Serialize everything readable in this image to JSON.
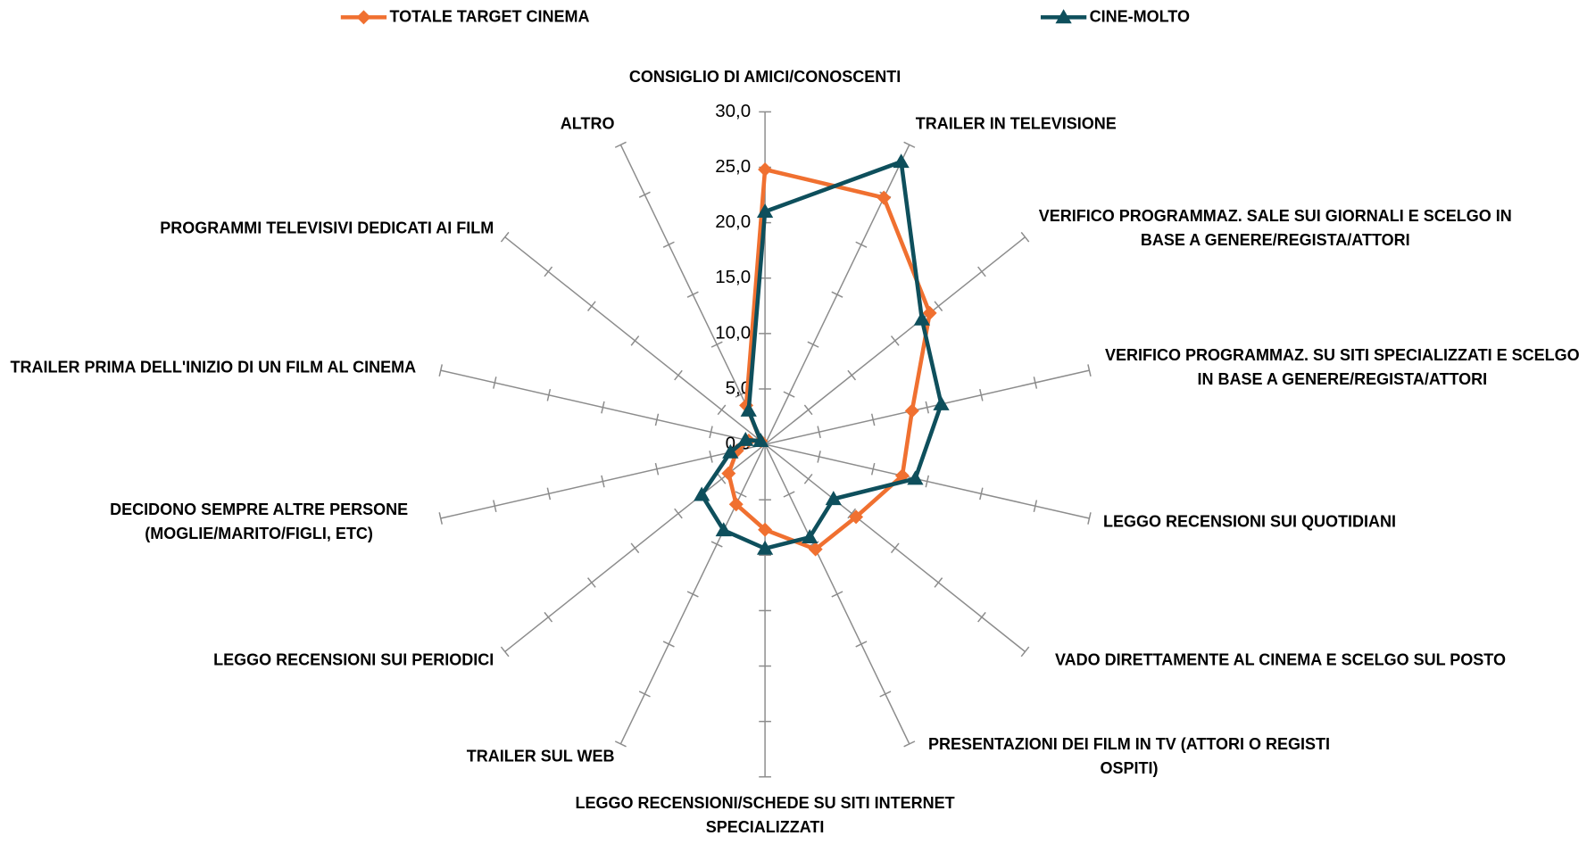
{
  "chart_data": {
    "type": "radar",
    "categories": [
      "CONSIGLIO DI AMICI/CONOSCENTI",
      "TRAILER IN TELEVISIONE",
      "VERIFICO PROGRAMMAZ. SALE SUI GIORNALI E SCELGO IN BASE A GENERE/REGISTA/ATTORI",
      "VERIFICO PROGRAMMAZ. SU SITI SPECIALIZZATI E SCELGO IN BASE A GENERE/REGISTA/ATTORI",
      "LEGGO RECENSIONI SUI QUOTIDIANI",
      "VADO DIRETTAMENTE AL CINEMA E SCELGO SUL POSTO",
      "PRESENTAZIONI DEI FILM IN TV (ATTORI O REGISTI OSPITI)",
      "LEGGO RECENSIONI/SCHEDE SU SITI INTERNET SPECIALIZZATI",
      "TRAILER SUL WEB",
      "LEGGO RECENSIONI SUI PERIODICI",
      "DECIDONO SEMPRE ALTRE PERSONE (MOGLIE/MARITO/FIGLI, ETC)",
      "TRAILER PRIMA DELL'INIZIO DI UN FILM AL CINEMA",
      "PROGRAMMI TELEVISIVI DEDICATI AI FILM",
      "ALTRO"
    ],
    "series": [
      {
        "name": "TOTALE TARGET CINEMA",
        "color": "#f07030",
        "marker": "diamond",
        "values": [
          24.8,
          24.7,
          19.0,
          13.6,
          12.7,
          10.5,
          10.5,
          7.7,
          6.0,
          4.2,
          2.6,
          1.5,
          0.5,
          3.9
        ]
      },
      {
        "name": "CINE-MOLTO",
        "color": "#0e4f5c",
        "marker": "triangle",
        "values": [
          21.0,
          28.3,
          18.1,
          16.3,
          13.9,
          7.9,
          9.3,
          9.4,
          8.6,
          7.3,
          3.2,
          1.8,
          0.5,
          3.4
        ]
      }
    ],
    "ylim": [
      0,
      30
    ],
    "yticks": [
      {
        "value": 0,
        "label": "0,0"
      },
      {
        "value": 5,
        "label": "5,0"
      },
      {
        "value": 10,
        "label": "10,0"
      },
      {
        "value": 15,
        "label": "15,0"
      },
      {
        "value": 20,
        "label": "20,0"
      },
      {
        "value": 25,
        "label": "25,0"
      },
      {
        "value": 30,
        "label": "30,0"
      }
    ],
    "legend": "top"
  }
}
